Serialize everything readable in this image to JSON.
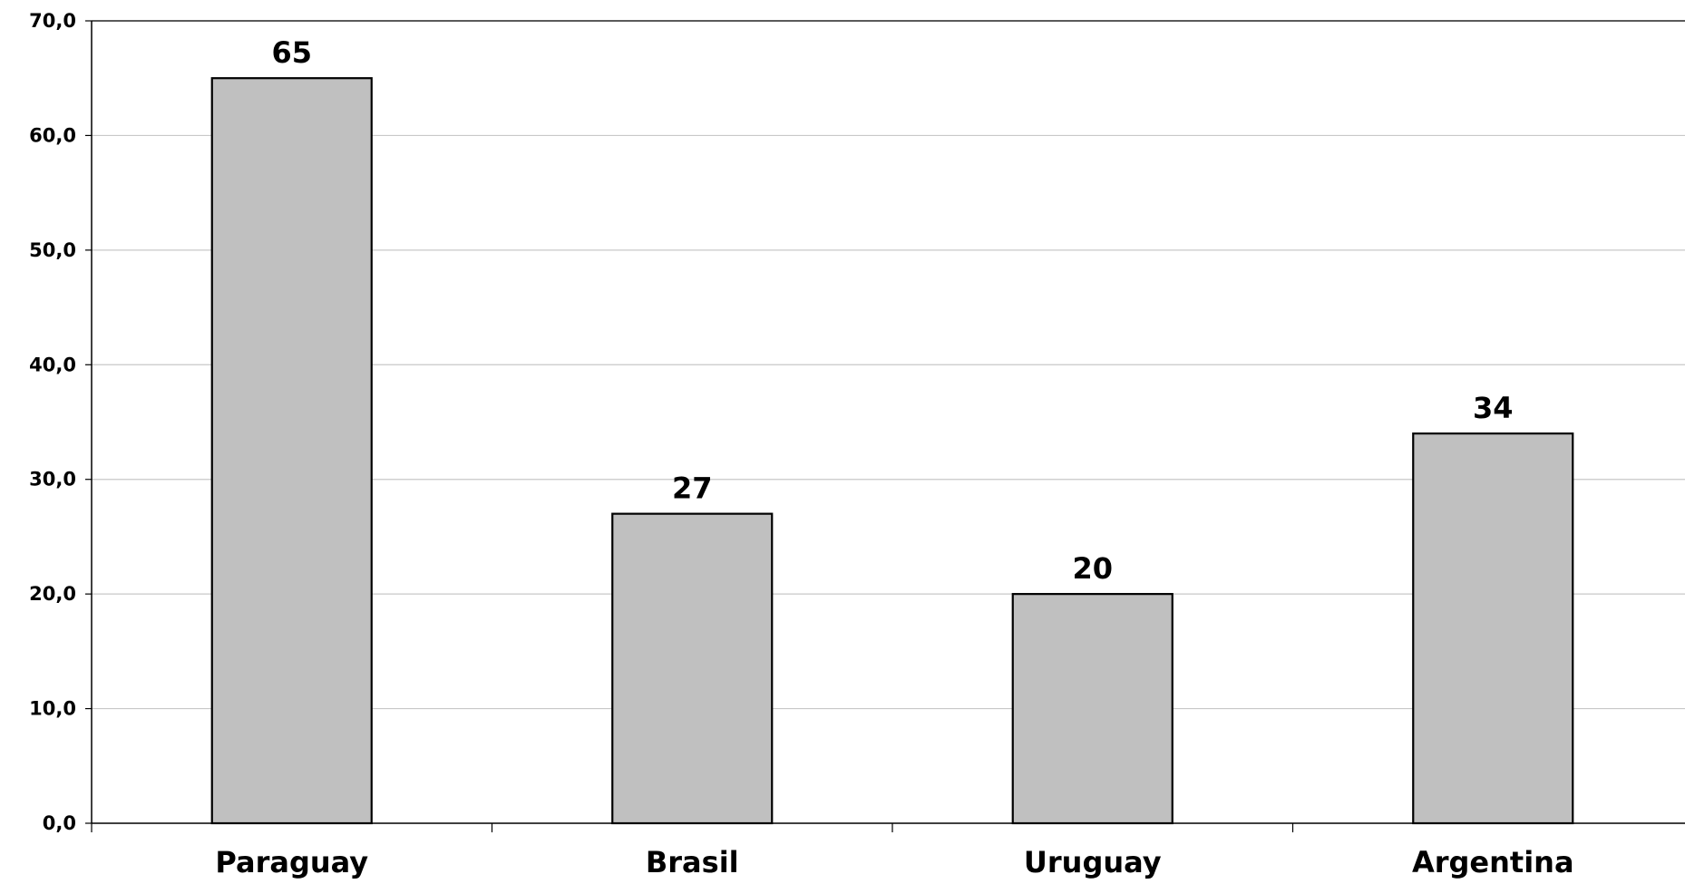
{
  "chart_data": {
    "type": "bar",
    "title": "",
    "xlabel": "",
    "ylabel": "",
    "categories": [
      "Paraguay",
      "Brasil",
      "Uruguay",
      "Argentina"
    ],
    "values": [
      65,
      27,
      20,
      34
    ],
    "data_labels": [
      "65",
      "27",
      "20",
      "34"
    ],
    "ylim": [
      0,
      70
    ],
    "y_ticks": [
      0,
      10,
      20,
      30,
      40,
      50,
      60,
      70
    ],
    "y_tick_labels": [
      "0,0",
      "10,0",
      "20,0",
      "30,0",
      "40,0",
      "50,0",
      "60,0",
      "70,0"
    ],
    "grid": true,
    "legend": "none",
    "colors": {
      "bar_fill": "#c0c0c0",
      "bar_stroke": "#000000",
      "gridline": "#c8c8c8",
      "axis": "#000000",
      "background": "#ffffff"
    }
  }
}
